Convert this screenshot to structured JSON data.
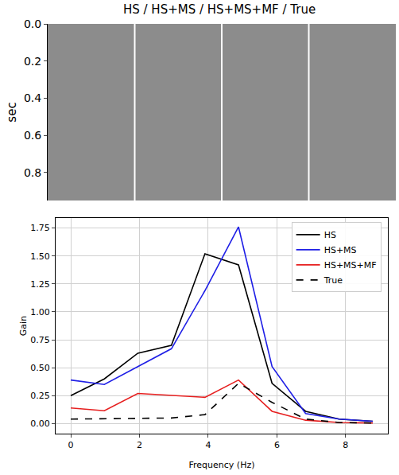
{
  "chart_data": [
    {
      "type": "image",
      "title": "HS / HS+MS / HS+MS+MF / True",
      "ylabel": "sec",
      "ylim": [
        0.95,
        0
      ],
      "yticks": [
        {
          "value": 0,
          "label": "0.0"
        },
        {
          "value": 0.2,
          "label": "0.2"
        },
        {
          "value": 0.4,
          "label": "0.4"
        },
        {
          "value": 0.6,
          "label": "0.6"
        },
        {
          "value": 0.8,
          "label": "0.8"
        }
      ],
      "tick_labels": "y"
    },
    {
      "type": "line",
      "xlabel": "Frequency (Hz)",
      "ylabel": "Gain",
      "x": [
        0,
        0.977,
        1.953,
        2.93,
        3.906,
        4.883,
        5.859,
        6.836,
        7.813,
        8.789
      ],
      "series": [
        {
          "name": "HS",
          "color": "#000000",
          "line_style": "solid",
          "values": [
            0.25,
            0.4,
            0.63,
            0.7,
            1.52,
            1.42,
            0.36,
            0.11,
            0.04,
            0.02
          ]
        },
        {
          "name": "HS+MS",
          "color": "#1f1fe6",
          "line_style": "solid",
          "values": [
            0.39,
            0.35,
            0.51,
            0.67,
            1.19,
            1.76,
            0.51,
            0.09,
            0.04,
            0.02
          ]
        },
        {
          "name": "HS+MS+MF",
          "color": "#e61f1f",
          "line_style": "solid",
          "values": [
            0.14,
            0.115,
            0.27,
            0.25,
            0.235,
            0.39,
            0.11,
            0.03,
            0.01,
            0.005
          ]
        },
        {
          "name": "True",
          "color": "#000000",
          "line_style": "dash",
          "values": [
            0.04,
            0.045,
            0.045,
            0.05,
            0.08,
            0.36,
            0.19,
            0.04,
            0.01,
            0.005
          ]
        }
      ],
      "xlim": [
        -0.44,
        9.23
      ],
      "xticks": [
        0,
        2,
        4,
        6,
        8
      ],
      "ylim": [
        -0.09,
        1.84
      ],
      "yticks": [
        {
          "value": 0,
          "label": "0.00"
        },
        {
          "value": 0.25,
          "label": "0.25"
        },
        {
          "value": 0.5,
          "label": "0.50"
        },
        {
          "value": 0.75,
          "label": "0.75"
        },
        {
          "value": 1,
          "label": "1.00"
        },
        {
          "value": 1.25,
          "label": "1.25"
        },
        {
          "value": 1.5,
          "label": "1.50"
        },
        {
          "value": 1.75,
          "label": "1.75"
        }
      ],
      "grid": true,
      "legend": "upper right"
    }
  ]
}
